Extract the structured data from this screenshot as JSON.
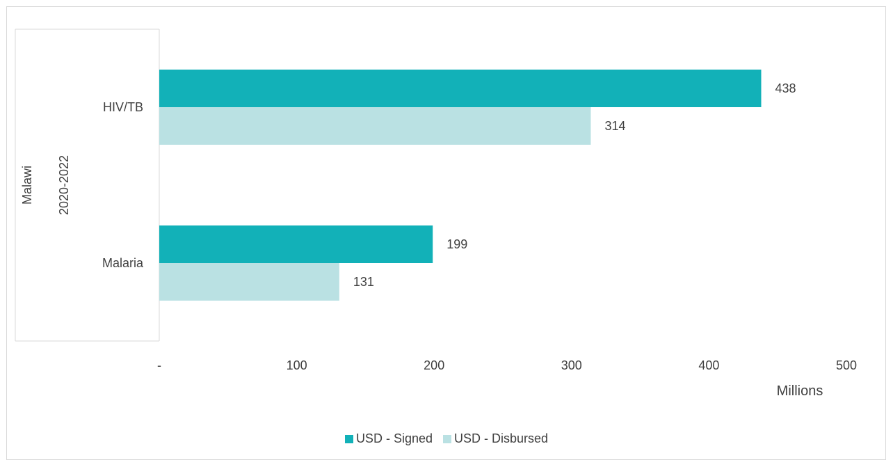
{
  "chart_data": {
    "type": "bar",
    "orientation": "horizontal",
    "group_label": "Malawi",
    "period_label": "2020-2022",
    "categories": [
      "HIV/TB",
      "Malaria"
    ],
    "series": [
      {
        "name": "USD - Signed",
        "values": [
          438,
          199
        ],
        "color": "#12b1b8"
      },
      {
        "name": "USD - Disbursed",
        "values": [
          314,
          131
        ],
        "color": "#bae1e3"
      }
    ],
    "xlabel": "Millions",
    "xlim": [
      0,
      500
    ],
    "xticks": [
      {
        "value": 0,
        "label": "-"
      },
      {
        "value": 100,
        "label": "100"
      },
      {
        "value": 200,
        "label": "200"
      },
      {
        "value": 300,
        "label": "300"
      },
      {
        "value": 400,
        "label": "400"
      },
      {
        "value": 500,
        "label": "500"
      }
    ],
    "grid": false,
    "legend_position": "bottom"
  }
}
